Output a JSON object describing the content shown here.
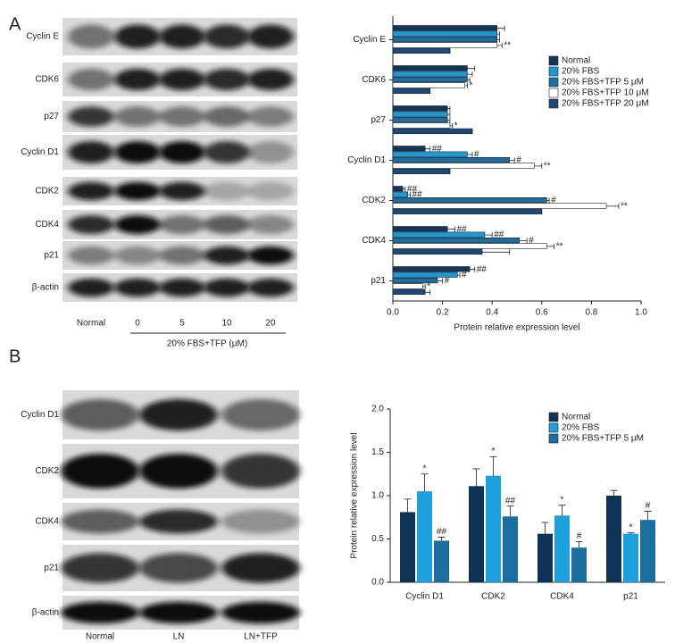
{
  "panel_labels": [
    "A",
    "B"
  ],
  "blots": [
    {
      "rows": [
        "Cyclin E",
        "CDK6",
        "p27",
        "Cyclin D1",
        "CDK2",
        "CDK4",
        "p21",
        "β-actin"
      ],
      "lanes": [
        "Normal",
        "0",
        "5",
        "10",
        "20"
      ],
      "group": "20% FBS+TFP (μM)"
    },
    {
      "rows": [
        "Cyclin D1",
        "CDK2",
        "CDK4",
        "p21",
        "β-actin"
      ],
      "lanes": [
        "Normal",
        "LN",
        "LN+TFP"
      ]
    }
  ],
  "chart_data": [
    {
      "type": "hbar",
      "xlabel": "Protein relative expression level",
      "categories": [
        "Cyclin E",
        "CDK6",
        "p27",
        "Cyclin D1",
        "CDK2",
        "CDK4",
        "p21"
      ],
      "series": [
        {
          "name": "Normal",
          "color": "#15355a",
          "values": [
            0.42,
            0.3,
            0.22,
            0.13,
            0.04,
            0.22,
            0.31
          ],
          "errors": [
            0.03,
            0.03,
            0.01,
            0.02,
            0.01,
            0.03,
            0.02
          ],
          "annotations": [
            null,
            null,
            null,
            "##",
            "##",
            "##",
            "##"
          ]
        },
        {
          "name": "20% FBS",
          "color": "#1d9ad6",
          "values": [
            0.42,
            0.3,
            0.22,
            0.3,
            0.06,
            0.37,
            0.26
          ],
          "errors": [
            0.01,
            0.02,
            0.01,
            0.02,
            0.01,
            0.03,
            0.01
          ],
          "annotations": [
            null,
            null,
            null,
            "#",
            "##",
            "##",
            "#"
          ]
        },
        {
          "name": "20% FBS+TFP 5 μM",
          "color": "#1f6ea3",
          "values": [
            0.42,
            0.3,
            0.22,
            0.47,
            0.62,
            0.51,
            0.18
          ],
          "errors": [
            0.01,
            0.01,
            0.01,
            0.02,
            0.01,
            0.03,
            0.02
          ],
          "annotations": [
            null,
            null,
            null,
            "#",
            "#",
            "#",
            "#"
          ]
        },
        {
          "name": "20% FBS+TFP 10 μM",
          "color": "#ffffff",
          "values": [
            0.42,
            0.29,
            0.23,
            0.57,
            0.86,
            0.62,
            0.12
          ],
          "errors": [
            0.02,
            0.01,
            0.01,
            0.03,
            0.05,
            0.03,
            0.01
          ],
          "annotations": [
            "**",
            "*",
            "*",
            "**",
            "**",
            "**",
            "*"
          ]
        },
        {
          "name": "20% FBS+TFP 20 μM",
          "color": "#1a4b7c",
          "values": [
            0.23,
            0.15,
            0.32,
            0.23,
            0.6,
            0.36,
            0.13
          ],
          "errors": [
            0.0,
            0.0,
            0.0,
            0.0,
            0.0,
            0.11,
            0.02
          ],
          "annotations": [
            null,
            null,
            null,
            null,
            null,
            null,
            null
          ]
        }
      ],
      "xlim": [
        0,
        1
      ],
      "xticks": [
        {
          "value": 0,
          "label": "0.0"
        },
        {
          "value": 0.2,
          "label": "0.2"
        },
        {
          "value": 0.4,
          "label": "0.4"
        },
        {
          "value": 0.6,
          "label": "0.6"
        },
        {
          "value": 0.8,
          "label": "0.8"
        },
        {
          "value": 1,
          "label": "1.0"
        }
      ],
      "legend": "upper right"
    },
    {
      "type": "bar",
      "ylabel": "Protein relative expression level",
      "categories": [
        "Cyclin D1",
        "CDK2",
        "CDK4",
        "p21"
      ],
      "series": [
        {
          "name": "Normal",
          "color": "#0f3257",
          "values": [
            0.81,
            1.11,
            0.56,
            1.0
          ],
          "errors": [
            0.15,
            0.2,
            0.13,
            0.06
          ],
          "annotations": [
            null,
            null,
            null,
            null
          ]
        },
        {
          "name": "20% FBS",
          "color": "#1ea0dc",
          "values": [
            1.05,
            1.23,
            0.77,
            0.56
          ],
          "errors": [
            0.2,
            0.22,
            0.12,
            0.01
          ],
          "annotations": [
            "*",
            "*",
            "*",
            "*"
          ]
        },
        {
          "name": "20% FBS+TFP 5 μM",
          "color": "#1a6ea0",
          "values": [
            0.48,
            0.76,
            0.4,
            0.72
          ],
          "errors": [
            0.04,
            0.12,
            0.07,
            0.1
          ],
          "annotations": [
            "##",
            "##",
            "#",
            "#"
          ]
        }
      ],
      "ylim": [
        0,
        2
      ],
      "yticks": [
        {
          "value": 0,
          "label": "0.0"
        },
        {
          "value": 0.5,
          "label": "0.5"
        },
        {
          "value": 1,
          "label": "1.0"
        },
        {
          "value": 1.5,
          "label": "1.5"
        },
        {
          "value": 2,
          "label": "2.0"
        }
      ],
      "legend": "upper right"
    }
  ]
}
